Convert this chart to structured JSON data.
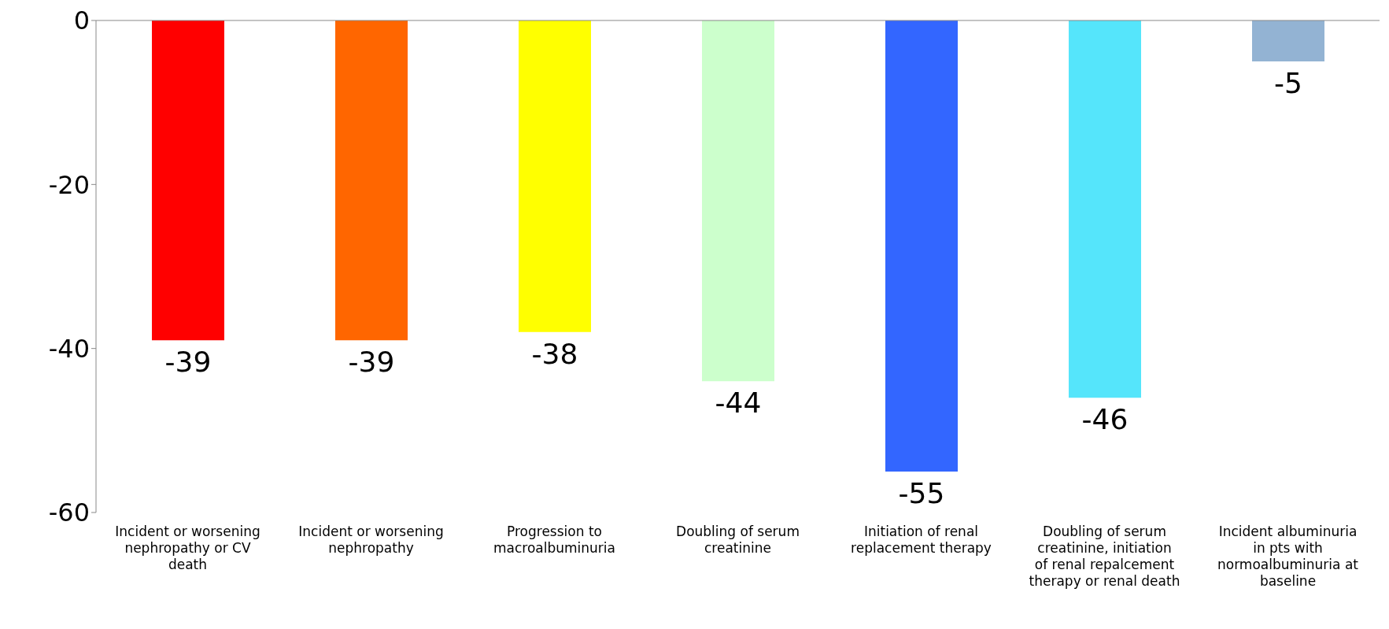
{
  "chart_data": {
    "type": "bar",
    "categories": [
      "Incident or worsening nephropathy or CV death",
      "Incident or worsening nephropathy",
      "Progression to macroalbuminuria",
      "Doubling of serum creatinine",
      "Initiation of renal replacement therapy",
      "Doubling of serum creatinine, initiation of renal repalcement therapy or renal death",
      "Incident albuminuria in pts with normoalbuminuria at baseline"
    ],
    "values": [
      -39,
      -39,
      -38,
      -44,
      -55,
      -46,
      -5
    ],
    "colors": [
      "#ff0000",
      "#ff6600",
      "#ffff00",
      "#ccffcc",
      "#3366ff",
      "#55e5fb",
      "#93b3d3"
    ],
    "ylim": [
      -60,
      0
    ],
    "yticks": [
      -60,
      -40,
      -20,
      0
    ],
    "data_labels": true
  }
}
